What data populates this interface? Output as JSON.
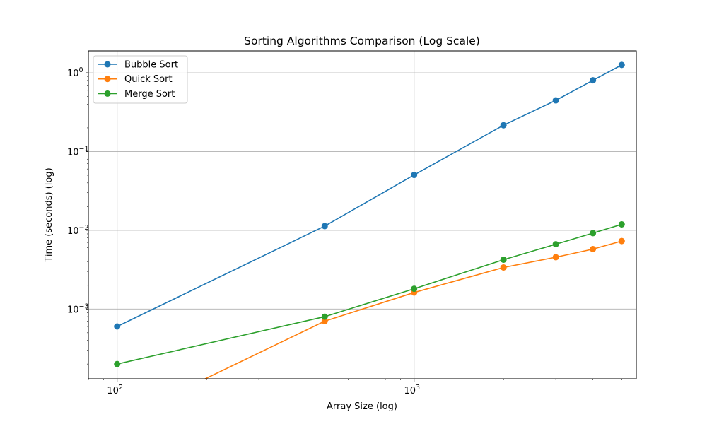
{
  "chart_data": {
    "type": "line",
    "title": "Sorting Algorithms Comparison (Log Scale)",
    "xlabel": "Array Size (log)",
    "ylabel": "Time (seconds) (log)",
    "x_scale": "log",
    "y_scale": "log",
    "xlim": [
      80,
      5600
    ],
    "ylim": [
      0.00013,
      1.9
    ],
    "x_ticks": [
      {
        "value": 100,
        "base": "10",
        "exp": "2"
      },
      {
        "value": 1000,
        "base": "10",
        "exp": "3"
      }
    ],
    "y_ticks": [
      {
        "value": 0.001,
        "base": "10",
        "exp": "−3"
      },
      {
        "value": 0.01,
        "base": "10",
        "exp": "−2"
      },
      {
        "value": 0.1,
        "base": "10",
        "exp": "−1"
      },
      {
        "value": 1,
        "base": "10",
        "exp": "0"
      }
    ],
    "grid": true,
    "legend_position": "upper-left",
    "x": [
      100,
      500,
      1000,
      2000,
      3000,
      4000,
      5000
    ],
    "series": [
      {
        "name": "Bubble Sort",
        "color": "#1f77b4",
        "values": [
          0.0006,
          0.0113,
          0.0505,
          0.216,
          0.447,
          0.803,
          1.26
        ]
      },
      {
        "name": "Quick Sort",
        "color": "#ff7f0e",
        "values": [
          0,
          0.0007,
          0.00162,
          0.00337,
          0.00455,
          0.00577,
          0.0073
        ]
      },
      {
        "name": "Merge Sort",
        "color": "#2ca02c",
        "values": [
          0.0002,
          0.0008,
          0.00181,
          0.00423,
          0.00665,
          0.0092,
          0.0119
        ]
      }
    ]
  }
}
